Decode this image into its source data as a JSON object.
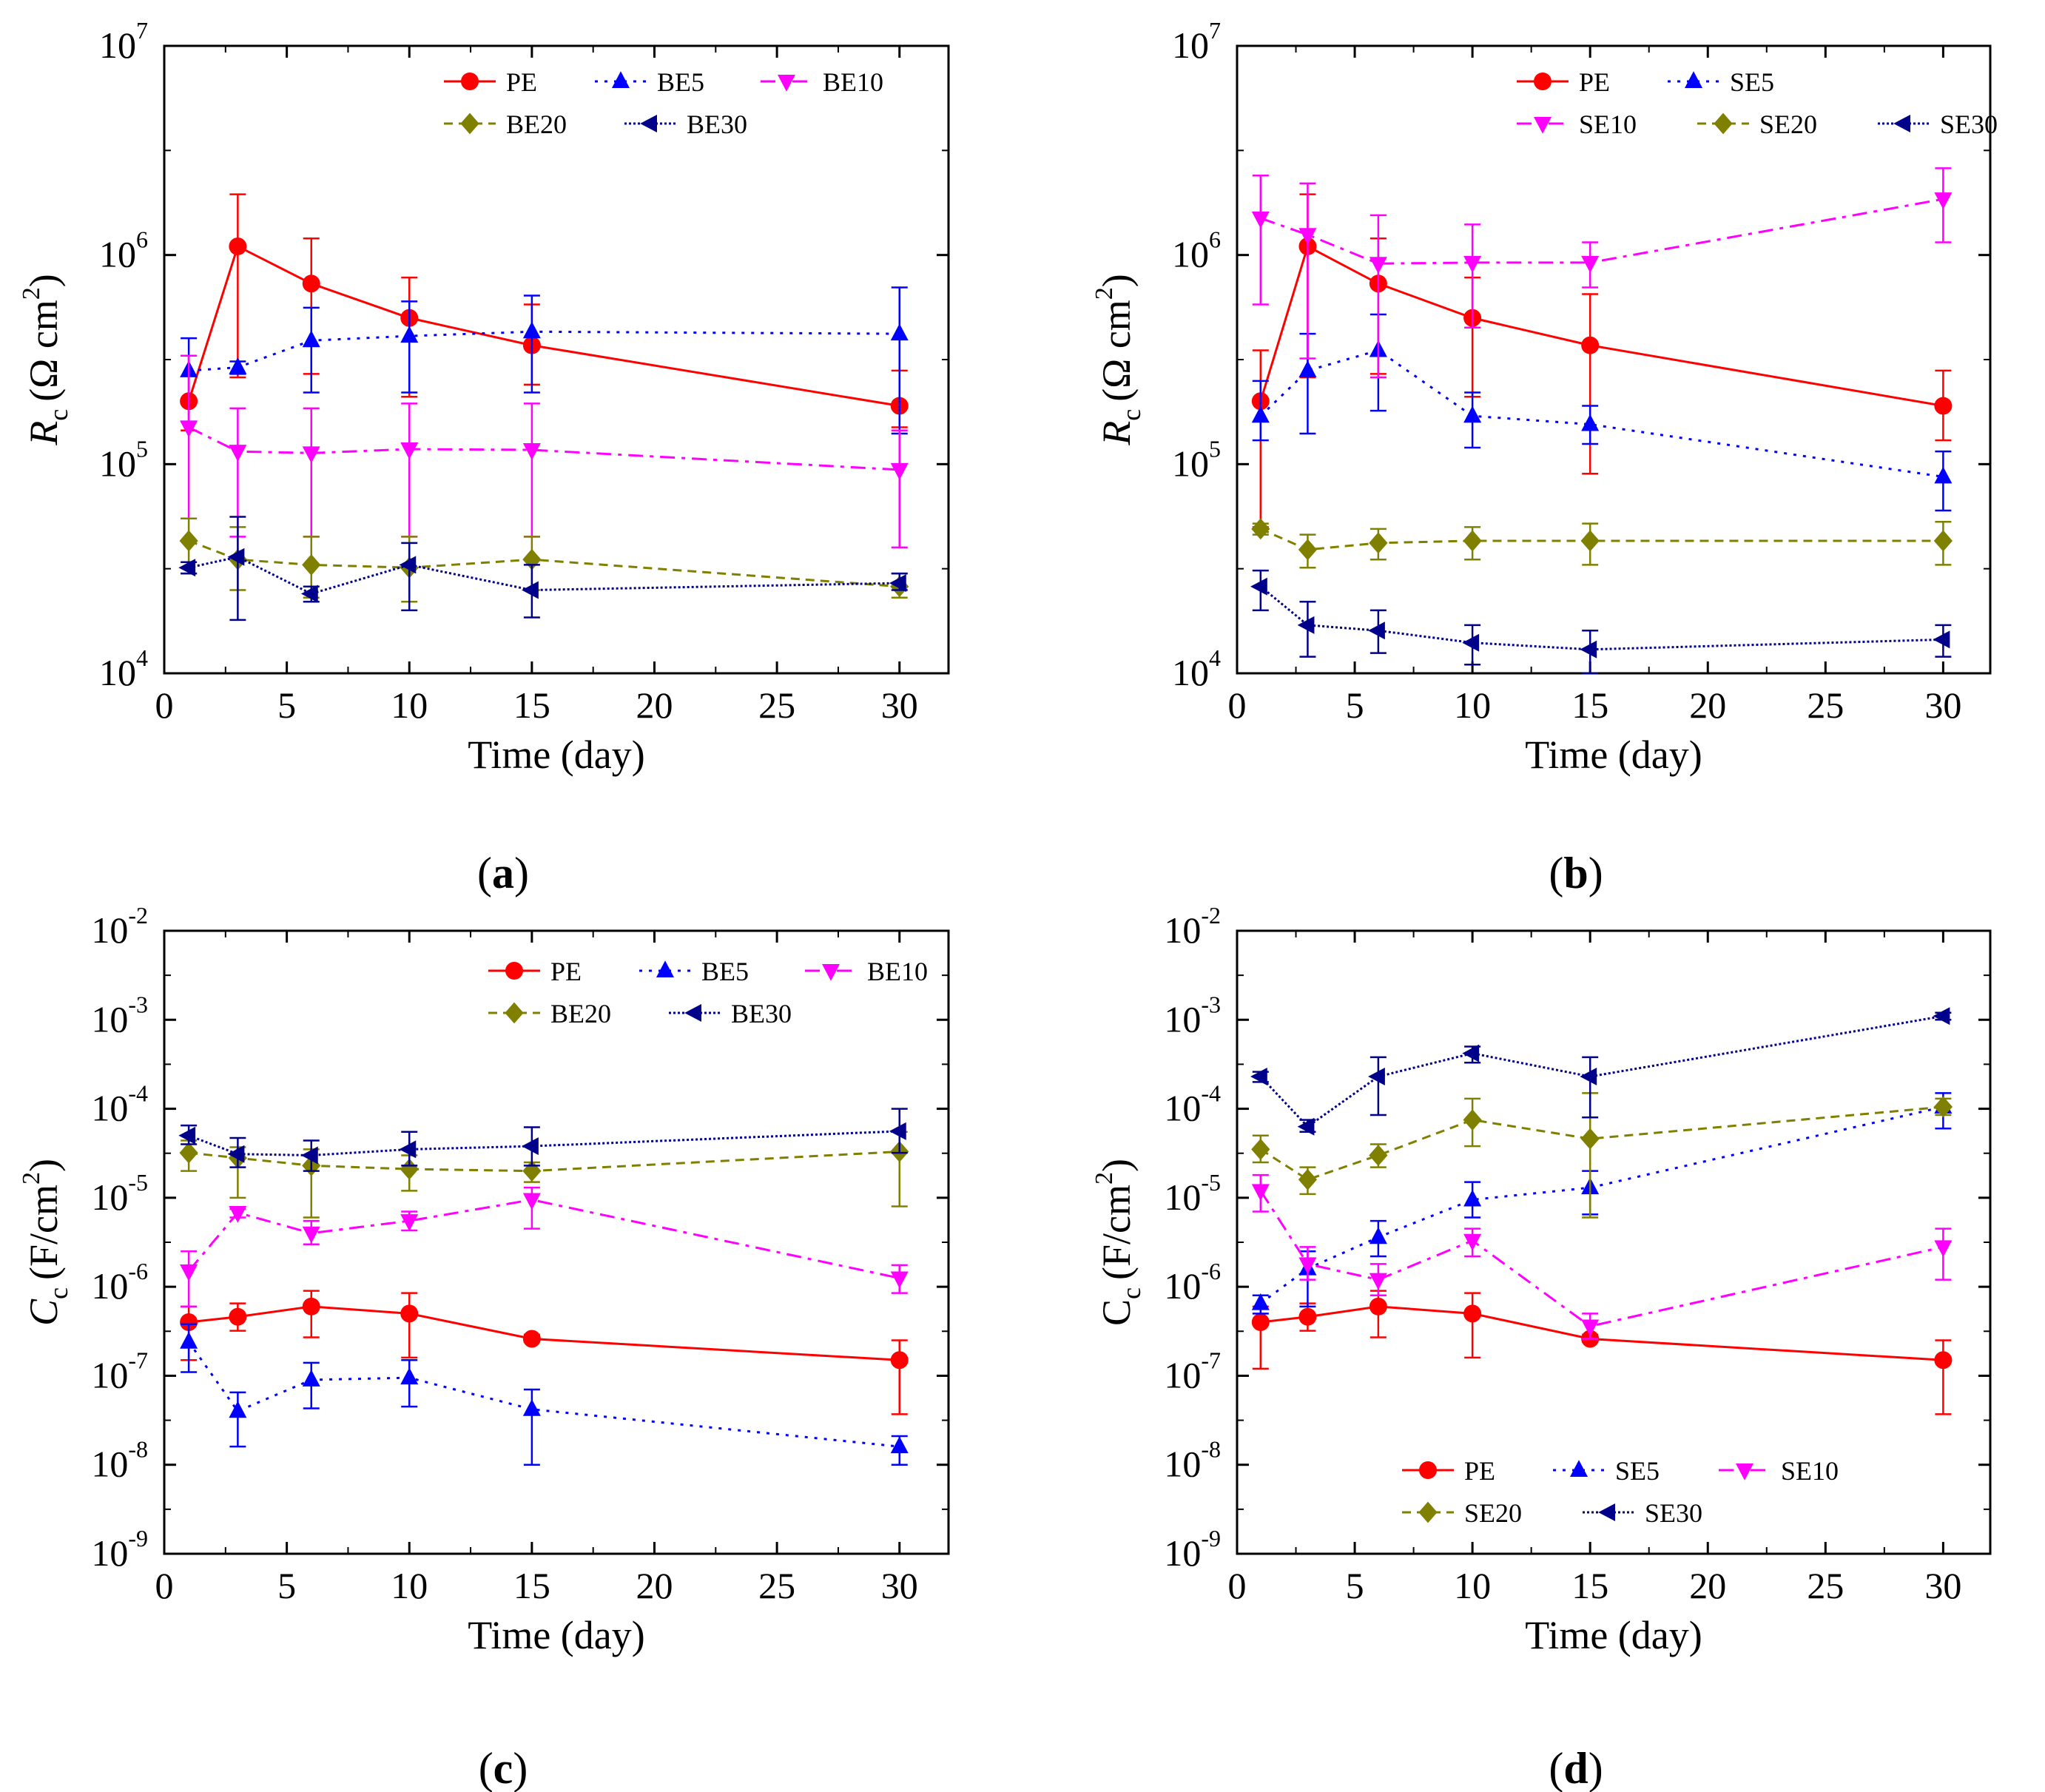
{
  "chart_data": [
    {
      "panel": "(a)",
      "panel_letter": "a",
      "type": "line",
      "scale_y": "log",
      "xlabel": "Time (day)",
      "ylabel": "R",
      "ylabel_sub": "c",
      "ylabel_unit": "(Ω cm",
      "ylabel_sup": "2",
      "ylabel_close": ")",
      "ylabel_italic": true,
      "xlim": [
        0,
        32
      ],
      "ylim_exp": [
        4,
        7
      ],
      "xticks": [
        0,
        5,
        10,
        15,
        20,
        25,
        30
      ],
      "yticks_exp": [
        4,
        5,
        6,
        7
      ],
      "legend_position": "top-right",
      "series": [
        {
          "name": "PE",
          "color": "#ff0000",
          "marker": "circle",
          "dash": "solid",
          "x": [
            1,
            3,
            6,
            10,
            15,
            30
          ],
          "values": [
            200000,
            1100000,
            730000,
            500000,
            370000,
            190000
          ],
          "err_high": [
            330000,
            1950000,
            1200000,
            780000,
            580000,
            280000
          ],
          "err_low": [
            145000,
            260000,
            270000,
            210000,
            240000,
            150000
          ]
        },
        {
          "name": "BE5",
          "color": "#0000ff",
          "marker": "triangle-up",
          "dash": "dot",
          "x": [
            1,
            3,
            6,
            10,
            15,
            30
          ],
          "values": [
            280000,
            290000,
            390000,
            410000,
            430000,
            420000
          ],
          "err_high": [
            400000,
            310000,
            560000,
            600000,
            640000,
            700000
          ],
          "err_low": [
            160000,
            270000,
            220000,
            220000,
            220000,
            140000
          ]
        },
        {
          "name": "BE10",
          "color": "#ff00ff",
          "marker": "triangle-down",
          "dash": "dashdot",
          "x": [
            1,
            3,
            6,
            10,
            15,
            30
          ],
          "values": [
            150000,
            115000,
            113000,
            118000,
            117000,
            94000
          ],
          "err_high": [
            330000,
            185000,
            185000,
            195000,
            195000,
            145000
          ],
          "err_low": [
            55000,
            45000,
            45000,
            45000,
            45000,
            40000
          ]
        },
        {
          "name": "BE20",
          "color": "#808000",
          "marker": "diamond",
          "dash": "dash",
          "x": [
            1,
            3,
            6,
            10,
            15,
            30
          ],
          "values": [
            43000,
            35000,
            33000,
            32000,
            35000,
            26000
          ],
          "err_high": [
            55000,
            50000,
            45000,
            45000,
            45000,
            30000
          ],
          "err_low": [
            30000,
            25000,
            23000,
            22000,
            25000,
            23000
          ]
        },
        {
          "name": "BE30",
          "color": "#00008b",
          "marker": "triangle-left",
          "dash": "densedot",
          "x": [
            1,
            3,
            6,
            10,
            15,
            30
          ],
          "values": [
            32000,
            36000,
            24000,
            33000,
            25000,
            27000
          ],
          "err_high": [
            34000,
            56000,
            26000,
            42000,
            33000,
            30000
          ],
          "err_low": [
            30000,
            18000,
            22000,
            20000,
            18500,
            25000
          ]
        }
      ]
    },
    {
      "panel": "(b)",
      "panel_letter": "b",
      "type": "line",
      "scale_y": "log",
      "xlabel": "Time (day)",
      "ylabel": "R",
      "ylabel_sub": "c",
      "ylabel_unit": "(Ω cm",
      "ylabel_sup": "2",
      "ylabel_close": ")",
      "ylabel_italic": true,
      "xlim": [
        0,
        32
      ],
      "ylim_exp": [
        4,
        7
      ],
      "xticks": [
        0,
        5,
        10,
        15,
        20,
        25,
        30
      ],
      "yticks_exp": [
        4,
        5,
        6,
        7
      ],
      "legend_position": "top-right",
      "series": [
        {
          "name": "PE",
          "color": "#ff0000",
          "marker": "circle",
          "dash": "solid",
          "x": [
            1,
            3,
            6,
            10,
            15,
            30
          ],
          "values": [
            200000,
            1100000,
            730000,
            500000,
            370000,
            190000
          ],
          "err_high": [
            350000,
            1950000,
            1200000,
            780000,
            650000,
            280000
          ],
          "err_low": [
            50000,
            260000,
            270000,
            210000,
            90000,
            130000
          ]
        },
        {
          "name": "SE5",
          "color": "#0000ff",
          "marker": "triangle-up",
          "dash": "dot",
          "x": [
            1,
            3,
            6,
            10,
            15,
            30
          ],
          "values": [
            170000,
            280000,
            350000,
            170000,
            155000,
            87000
          ],
          "err_high": [
            250000,
            420000,
            520000,
            220000,
            190000,
            115000
          ],
          "err_low": [
            130000,
            140000,
            180000,
            120000,
            125000,
            60000
          ]
        },
        {
          "name": "SE10",
          "color": "#ff00ff",
          "marker": "triangle-down",
          "dash": "dashdot",
          "x": [
            1,
            3,
            6,
            10,
            15,
            30
          ],
          "values": [
            1500000,
            1250000,
            910000,
            920000,
            920000,
            1850000
          ],
          "err_high": [
            2400000,
            2200000,
            1550000,
            1400000,
            1150000,
            2600000
          ],
          "err_low": [
            580000,
            320000,
            260000,
            450000,
            700000,
            1150000
          ]
        },
        {
          "name": "SE20",
          "color": "#808000",
          "marker": "diamond",
          "dash": "dash",
          "x": [
            1,
            3,
            6,
            10,
            15,
            30
          ],
          "values": [
            49000,
            39000,
            42000,
            43000,
            43000,
            43000
          ],
          "err_high": [
            52000,
            46000,
            49000,
            50000,
            52000,
            53000
          ],
          "err_low": [
            46000,
            32000,
            35000,
            35000,
            33000,
            33000
          ]
        },
        {
          "name": "SE30",
          "color": "#00008b",
          "marker": "triangle-left",
          "dash": "densedot",
          "x": [
            1,
            3,
            6,
            10,
            15,
            30
          ],
          "values": [
            26000,
            17000,
            16000,
            14000,
            13000,
            14500
          ],
          "err_high": [
            31000,
            22000,
            20000,
            17000,
            16000,
            17000
          ],
          "err_low": [
            20000,
            12000,
            12500,
            11000,
            10000,
            12000
          ]
        }
      ]
    },
    {
      "panel": "(c)",
      "panel_letter": "c",
      "type": "line",
      "scale_y": "log",
      "xlabel": "Time (day)",
      "ylabel": "C",
      "ylabel_sub": "c",
      "ylabel_unit": "(F/cm",
      "ylabel_sup": "2",
      "ylabel_close": ")",
      "ylabel_italic": true,
      "xlim": [
        0,
        32
      ],
      "ylim_exp": [
        -9,
        -2
      ],
      "xticks": [
        0,
        5,
        10,
        15,
        20,
        25,
        30
      ],
      "yticks_exp": [
        -9,
        -8,
        -7,
        -6,
        -5,
        -4,
        -3,
        -2
      ],
      "legend_position": "top-right",
      "series": [
        {
          "name": "PE",
          "color": "#ff0000",
          "marker": "circle",
          "dash": "solid",
          "x": [
            1,
            3,
            6,
            10,
            15,
            30
          ],
          "values": [
            4e-07,
            4.6e-07,
            6e-07,
            5e-07,
            2.6e-07,
            1.5e-07
          ],
          "err_high": [
            6e-07,
            6.5e-07,
            9e-07,
            8.5e-07,
            2.9e-07,
            2.5e-07
          ],
          "err_low": [
            1.5e-07,
            3.2e-07,
            2.7e-07,
            1.6e-07,
            2.4e-07,
            3.7e-08
          ]
        },
        {
          "name": "BE5",
          "color": "#0000ff",
          "marker": "triangle-up",
          "dash": "dot",
          "x": [
            1,
            3,
            6,
            10,
            15,
            30
          ],
          "values": [
            2.4e-07,
            4e-08,
            9e-08,
            9.5e-08,
            4.2e-08,
            1.6e-08
          ],
          "err_high": [
            3.8e-07,
            6.5e-08,
            1.4e-07,
            1.5e-07,
            7e-08,
            2.1e-08
          ],
          "err_low": [
            1.1e-07,
            1.6e-08,
            4.3e-08,
            4.5e-08,
            1e-08,
            1e-08
          ]
        },
        {
          "name": "BE10",
          "color": "#ff00ff",
          "marker": "triangle-down",
          "dash": "dashdot",
          "x": [
            1,
            3,
            6,
            10,
            15,
            30
          ],
          "values": [
            1.5e-06,
            6.8e-06,
            4e-06,
            5.5e-06,
            9.5e-06,
            1.25e-06
          ],
          "err_high": [
            2.5e-06,
            7.5e-06,
            5.5e-06,
            7e-06,
            1.3e-05,
            1.75e-06
          ],
          "err_low": [
            6e-07,
            6e-06,
            3e-06,
            4.3e-06,
            4.5e-06,
            8.5e-07
          ]
        },
        {
          "name": "BE20",
          "color": "#808000",
          "marker": "diamond",
          "dash": "dash",
          "x": [
            1,
            3,
            6,
            10,
            15,
            30
          ],
          "values": [
            3.2e-05,
            2.8e-05,
            2.3e-05,
            2.1e-05,
            2e-05,
            3.3e-05
          ],
          "err_high": [
            4.4e-05,
            3.7e-05,
            3.5e-05,
            3e-05,
            2.5e-05,
            5.5e-05
          ],
          "err_low": [
            2e-05,
            1e-05,
            6e-06,
            1.2e-05,
            1.5e-05,
            8e-06
          ]
        },
        {
          "name": "BE30",
          "color": "#00008b",
          "marker": "triangle-left",
          "dash": "densedot",
          "x": [
            1,
            3,
            6,
            10,
            15,
            30
          ],
          "values": [
            5e-05,
            3.1e-05,
            3e-05,
            3.5e-05,
            3.8e-05,
            5.6e-05
          ],
          "err_high": [
            6.5e-05,
            4.7e-05,
            4.4e-05,
            5.5e-05,
            6.2e-05,
            0.0001
          ],
          "err_low": [
            4e-05,
            2.2e-05,
            2e-05,
            2.3e-05,
            2.3e-05,
            3.2e-05
          ]
        }
      ]
    },
    {
      "panel": "(d)",
      "panel_letter": "d",
      "type": "line",
      "scale_y": "log",
      "xlabel": "Time (day)",
      "ylabel": "C",
      "ylabel_sub": "c",
      "ylabel_unit": "(F/cm",
      "ylabel_sup": "2",
      "ylabel_close": ")",
      "ylabel_italic": false,
      "xlim": [
        0,
        32
      ],
      "ylim_exp": [
        -9,
        -2
      ],
      "xticks": [
        0,
        5,
        10,
        15,
        20,
        25,
        30
      ],
      "yticks_exp": [
        -9,
        -8,
        -7,
        -6,
        -5,
        -4,
        -3,
        -2
      ],
      "legend_position": "bottom-center",
      "series": [
        {
          "name": "PE",
          "color": "#ff0000",
          "marker": "circle",
          "dash": "solid",
          "x": [
            1,
            3,
            6,
            10,
            15,
            30
          ],
          "values": [
            4e-07,
            4.6e-07,
            6e-07,
            5e-07,
            2.6e-07,
            1.5e-07
          ],
          "err_high": [
            6e-07,
            6.5e-07,
            9e-07,
            8.5e-07,
            2.9e-07,
            2.5e-07
          ],
          "err_low": [
            1.2e-07,
            3.2e-07,
            2.7e-07,
            1.6e-07,
            2.4e-07,
            3.7e-08
          ]
        },
        {
          "name": "SE5",
          "color": "#0000ff",
          "marker": "triangle-up",
          "dash": "dot",
          "x": [
            1,
            3,
            6,
            10,
            15,
            30
          ],
          "values": [
            6.5e-07,
            1.6e-06,
            3.6e-06,
            9.5e-06,
            1.3e-05,
            0.000105
          ],
          "err_high": [
            8e-07,
            2.5e-06,
            5.5e-06,
            1.5e-05,
            2e-05,
            0.00015
          ],
          "err_low": [
            5e-07,
            6e-07,
            2.2e-06,
            6e-06,
            6.5e-06,
            6e-05
          ]
        },
        {
          "name": "SE10",
          "color": "#ff00ff",
          "marker": "triangle-down",
          "dash": "dashdot",
          "x": [
            1,
            3,
            6,
            10,
            15,
            30
          ],
          "values": [
            1.2e-05,
            1.8e-06,
            1.2e-06,
            3.3e-06,
            3.6e-07,
            2.8e-06
          ],
          "err_high": [
            1.8e-05,
            2.8e-06,
            1.8e-06,
            4.5e-06,
            5e-07,
            4.5e-06
          ],
          "err_low": [
            7e-06,
            1.2e-06,
            8e-07,
            2.2e-06,
            2.6e-07,
            1.2e-06
          ]
        },
        {
          "name": "SE20",
          "color": "#808000",
          "marker": "diamond",
          "dash": "dash",
          "x": [
            1,
            3,
            6,
            10,
            15,
            30
          ],
          "values": [
            3.5e-05,
            1.6e-05,
            3e-05,
            7.5e-05,
            4.6e-05,
            0.000105
          ],
          "err_high": [
            5e-05,
            2.2e-05,
            4e-05,
            0.00013,
            0.00015,
            0.00013
          ],
          "err_low": [
            2.5e-05,
            1.1e-05,
            2.2e-05,
            3.8e-05,
            6e-06,
            8.5e-05
          ]
        },
        {
          "name": "SE30",
          "color": "#00008b",
          "marker": "triangle-left",
          "dash": "densedot",
          "x": [
            1,
            3,
            6,
            10,
            15,
            30
          ],
          "values": [
            0.00023,
            6.3e-05,
            0.00023,
            0.00042,
            0.00023,
            0.0011
          ],
          "err_high": [
            0.00026,
            7.5e-05,
            0.00038,
            0.0005,
            0.00038,
            0.0012
          ],
          "err_low": [
            0.0002,
            5.5e-05,
            8.5e-05,
            0.00033,
            8e-05,
            0.001
          ]
        }
      ]
    }
  ]
}
